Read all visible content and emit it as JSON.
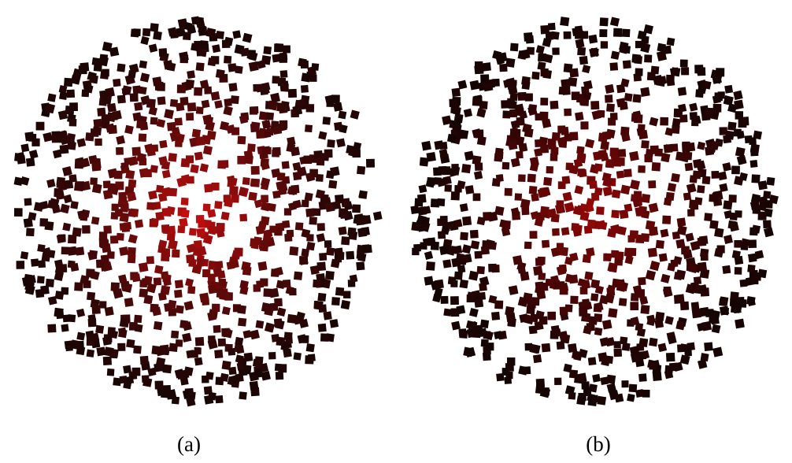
{
  "figure": {
    "panels": [
      {
        "id": "a",
        "caption": "(a)",
        "description_colors": {
          "outer": "#1a0505",
          "inner": "#e01010"
        },
        "max_intensity": 0.9,
        "seed": 17
      },
      {
        "id": "b",
        "caption": "(b)",
        "description_colors": {
          "outer": "#150404",
          "inner": "#d00808"
        },
        "max_intensity": 0.7,
        "seed": 29
      }
    ]
  }
}
